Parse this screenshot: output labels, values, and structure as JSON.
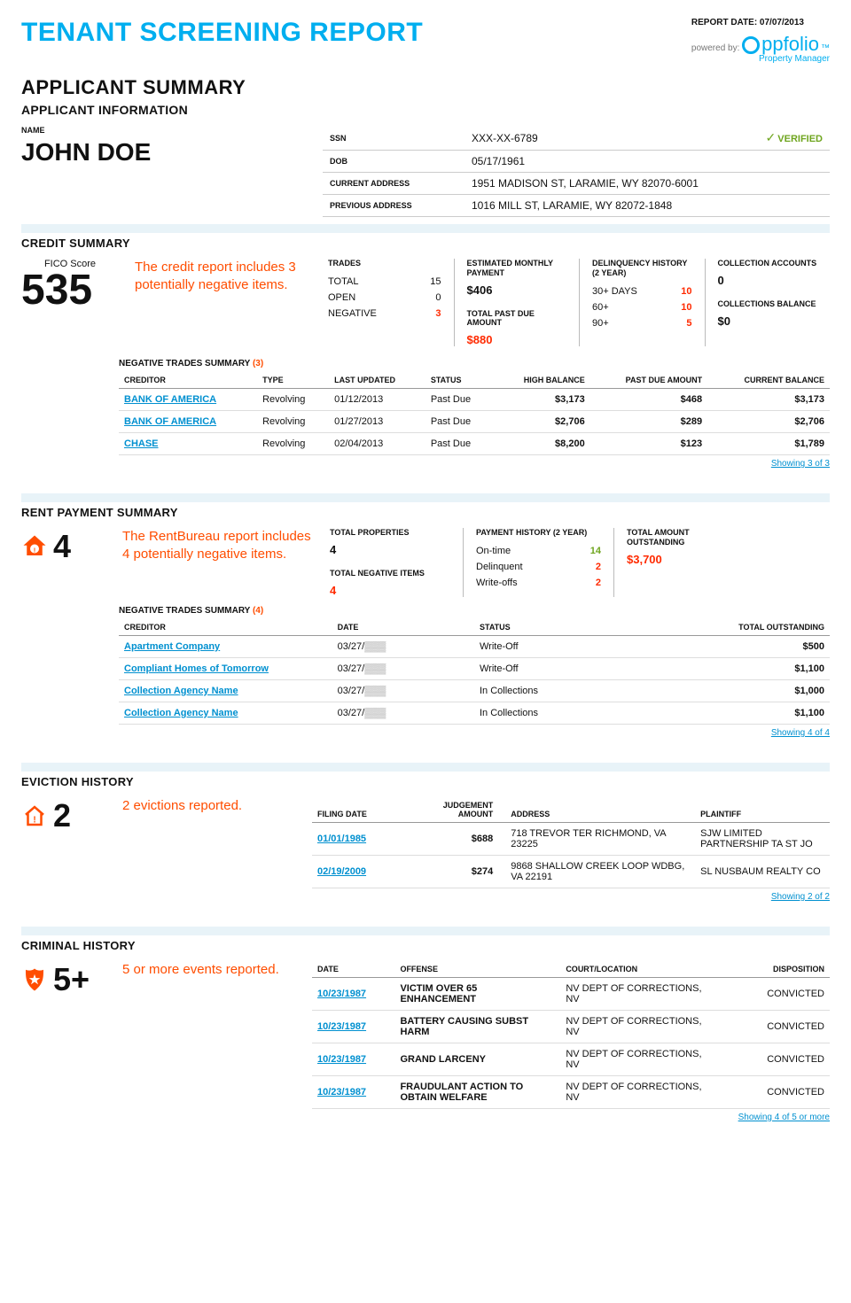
{
  "header": {
    "title": "TENANT SCREENING REPORT",
    "report_date_label": "REPORT DATE: 07/07/2013",
    "powered_by": "powered by:",
    "brand_text": "ppfolio",
    "brand_tm": "™",
    "brand_sub": "Property Manager"
  },
  "applicant": {
    "summary_title": "APPLICANT SUMMARY",
    "info_title": "APPLICANT INFORMATION",
    "name_label": "NAME",
    "name": "JOHN DOE",
    "rows": [
      {
        "label": "SSN",
        "value": "XXX-XX-6789",
        "verified": "VERIFIED"
      },
      {
        "label": "DOB",
        "value": "05/17/1961"
      },
      {
        "label": "CURRENT ADDRESS",
        "value": "1951 MADISON ST, LARAMIE, WY 82070-6001"
      },
      {
        "label": "PREVIOUS ADDRESS",
        "value": "1016 MILL ST, LARAMIE, WY 82072-1848"
      }
    ]
  },
  "credit": {
    "title": "CREDIT SUMMARY",
    "fico_label": "FICO Score",
    "fico": "535",
    "warn": "The credit report includes 3 potentially negative items.",
    "trades": {
      "hdr": "TRADES",
      "rows": [
        {
          "l": "TOTAL",
          "v": "15",
          "cls": ""
        },
        {
          "l": "OPEN",
          "v": "0",
          "cls": ""
        },
        {
          "l": "NEGATIVE",
          "v": "3",
          "cls": "red"
        }
      ]
    },
    "estimated": {
      "hdr1": "ESTIMATED MONTHLY PAYMENT",
      "v1": "$406",
      "hdr2": "TOTAL PAST DUE AMOUNT",
      "v2": "$880"
    },
    "delinquency": {
      "hdr": "DELINQUENCY HISTORY (2 YEAR)",
      "rows": [
        {
          "l": "30+ DAYS",
          "v": "10"
        },
        {
          "l": "60+",
          "v": "10"
        },
        {
          "l": "90+",
          "v": "5"
        }
      ]
    },
    "collection": {
      "hdr1": "COLLECTION ACCOUNTS",
      "v1": "0",
      "hdr2": "COLLECTIONS BALANCE",
      "v2": "$0"
    },
    "neg_title": "NEGATIVE TRADES SUMMARY",
    "neg_count": "(3)",
    "cols": [
      "CREDITOR",
      "TYPE",
      "LAST UPDATED",
      "STATUS",
      "HIGH BALANCE",
      "PAST DUE AMOUNT",
      "CURRENT BALANCE"
    ],
    "rows": [
      {
        "creditor": "BANK OF AMERICA",
        "type": "Revolving",
        "updated": "01/12/2013",
        "status": "Past Due",
        "high": "$3,173",
        "past": "$468",
        "curr": "$3,173"
      },
      {
        "creditor": "BANK OF AMERICA",
        "type": "Revolving",
        "updated": "01/27/2013",
        "status": "Past Due",
        "high": "$2,706",
        "past": "$289",
        "curr": "$2,706"
      },
      {
        "creditor": "CHASE",
        "type": "Revolving",
        "updated": "02/04/2013",
        "status": "Past Due",
        "high": "$8,200",
        "past": "$123",
        "curr": "$1,789"
      }
    ],
    "showing": "Showing 3 of 3"
  },
  "rent": {
    "title": "RENT PAYMENT SUMMARY",
    "count": "4",
    "warn": "The RentBureau report includes 4 potentially negative items.",
    "stats": {
      "c1": {
        "h1": "TOTAL PROPERTIES",
        "v1": "4",
        "h2": "TOTAL NEGATIVE ITEMS",
        "v2": "4"
      },
      "c2": {
        "h": "PAYMENT HISTORY (2 YEAR)",
        "rows": [
          {
            "l": "On-time",
            "v": "14",
            "cls": "green"
          },
          {
            "l": "Delinquent",
            "v": "2",
            "cls": "red"
          },
          {
            "l": "Write-offs",
            "v": "2",
            "cls": "red"
          }
        ]
      },
      "c3": {
        "h": "TOTAL AMOUNT OUTSTANDING",
        "v": "$3,700"
      }
    },
    "neg_title": "NEGATIVE TRADES SUMMARY",
    "neg_count": "(4)",
    "cols": [
      "CREDITOR",
      "DATE",
      "STATUS",
      "TOTAL OUTSTANDING"
    ],
    "rows": [
      {
        "creditor": "Apartment Company",
        "date": "03/27/",
        "status": "Write-Off",
        "total": "$500"
      },
      {
        "creditor": "Compliant Homes of Tomorrow",
        "date": "03/27/",
        "status": "Write-Off",
        "total": "$1,100"
      },
      {
        "creditor": "Collection Agency Name",
        "date": "03/27/",
        "status": "In Collections",
        "total": "$1,000"
      },
      {
        "creditor": "Collection Agency Name",
        "date": "03/27/",
        "status": "In Collections",
        "total": "$1,100"
      }
    ],
    "showing": "Showing 4 of 4"
  },
  "eviction": {
    "title": "EVICTION HISTORY",
    "count": "2",
    "warn": "2 evictions reported.",
    "cols": [
      "FILING DATE",
      "JUDGEMENT AMOUNT",
      "ADDRESS",
      "PLAINTIFF"
    ],
    "rows": [
      {
        "date": "01/01/1985",
        "amt": "$688",
        "addr": "718 TREVOR TER RICHMOND, VA 23225",
        "pl": "SJW LIMITED PARTNERSHIP TA ST JO"
      },
      {
        "date": "02/19/2009",
        "amt": "$274",
        "addr": "9868 SHALLOW CREEK LOOP WDBG, VA 22191",
        "pl": "SL NUSBAUM REALTY CO"
      }
    ],
    "showing": "Showing 2 of 2"
  },
  "criminal": {
    "title": "CRIMINAL HISTORY",
    "count": "5+",
    "warn": "5 or more events reported.",
    "cols": [
      "DATE",
      "OFFENSE",
      "COURT/LOCATION",
      "DISPOSITION"
    ],
    "rows": [
      {
        "date": "10/23/1987",
        "off": "VICTIM OVER 65 ENHANCEMENT",
        "court": "NV DEPT OF CORRECTIONS, NV",
        "disp": "CONVICTED"
      },
      {
        "date": "10/23/1987",
        "off": "BATTERY CAUSING SUBST HARM",
        "court": "NV DEPT OF CORRECTIONS, NV",
        "disp": "CONVICTED"
      },
      {
        "date": "10/23/1987",
        "off": "GRAND LARCENY",
        "court": "NV DEPT OF CORRECTIONS, NV",
        "disp": "CONVICTED"
      },
      {
        "date": "10/23/1987",
        "off": "FRAUDULANT ACTION TO OBTAIN WELFARE",
        "court": "NV DEPT OF CORRECTIONS, NV",
        "disp": "CONVICTED"
      }
    ],
    "showing": "Showing 4 of 5 or more"
  },
  "colors": {
    "brand": "#00aeef",
    "warn": "#ff4d00",
    "green": "#6fa51f",
    "band": "#e8f3f8"
  }
}
